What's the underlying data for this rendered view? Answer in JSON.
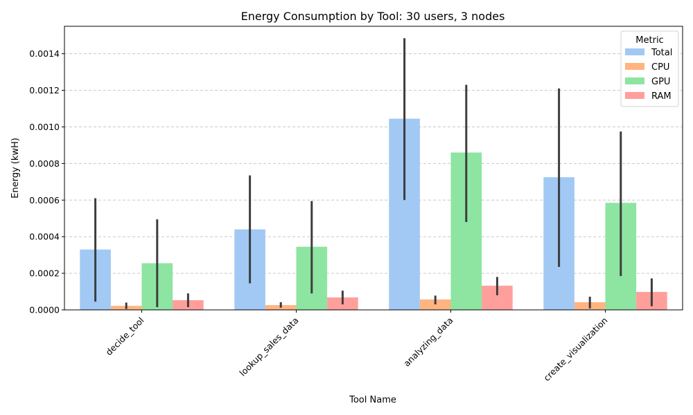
{
  "chart_data": {
    "type": "bar",
    "title": "Energy Consumption by Tool: 30 users, 3 nodes",
    "xlabel": "Tool Name",
    "ylabel": "Energy (kwH)",
    "categories": [
      "decide_tool",
      "lookup_sales_data",
      "analyzing_data",
      "create_visualization"
    ],
    "ylim": [
      0,
      0.00155
    ],
    "yticks": [
      "0.0000",
      "0.0002",
      "0.0004",
      "0.0006",
      "0.0008",
      "0.0010",
      "0.0012",
      "0.0014"
    ],
    "ytick_values": [
      0,
      0.0002,
      0.0004,
      0.0006,
      0.0008,
      0.001,
      0.0012,
      0.0014
    ],
    "grid": true,
    "legend": {
      "title": "Metric",
      "placement": "top-right"
    },
    "series": [
      {
        "name": "Total",
        "color": "#a1c9f4",
        "values": [
          0.00033,
          0.00044,
          0.001045,
          0.000725
        ],
        "err_low": [
          4.5e-05,
          0.000145,
          0.0006,
          0.000235
        ],
        "err_high": [
          0.00061,
          0.000735,
          0.001485,
          0.00121
        ]
      },
      {
        "name": "CPU",
        "color": "#ffb482",
        "values": [
          2.2e-05,
          2.6e-05,
          5.7e-05,
          4.2e-05
        ],
        "err_low": [
          5e-06,
          1.2e-05,
          3e-05,
          8e-06
        ],
        "err_high": [
          4e-05,
          4.2e-05,
          7.8e-05,
          7.2e-05
        ]
      },
      {
        "name": "GPU",
        "color": "#8de5a1",
        "values": [
          0.000255,
          0.000345,
          0.00086,
          0.000585
        ],
        "err_low": [
          1.5e-05,
          9e-05,
          0.00048,
          0.000185
        ],
        "err_high": [
          0.000495,
          0.000595,
          0.00123,
          0.000975
        ]
      },
      {
        "name": "RAM",
        "color": "#ff9f9b",
        "values": [
          5.3e-05,
          6.8e-05,
          0.000132,
          9.8e-05
        ],
        "err_low": [
          1.5e-05,
          3e-05,
          8e-05,
          2e-05
        ],
        "err_high": [
          9e-05,
          0.000105,
          0.00018,
          0.000172
        ]
      }
    ]
  }
}
